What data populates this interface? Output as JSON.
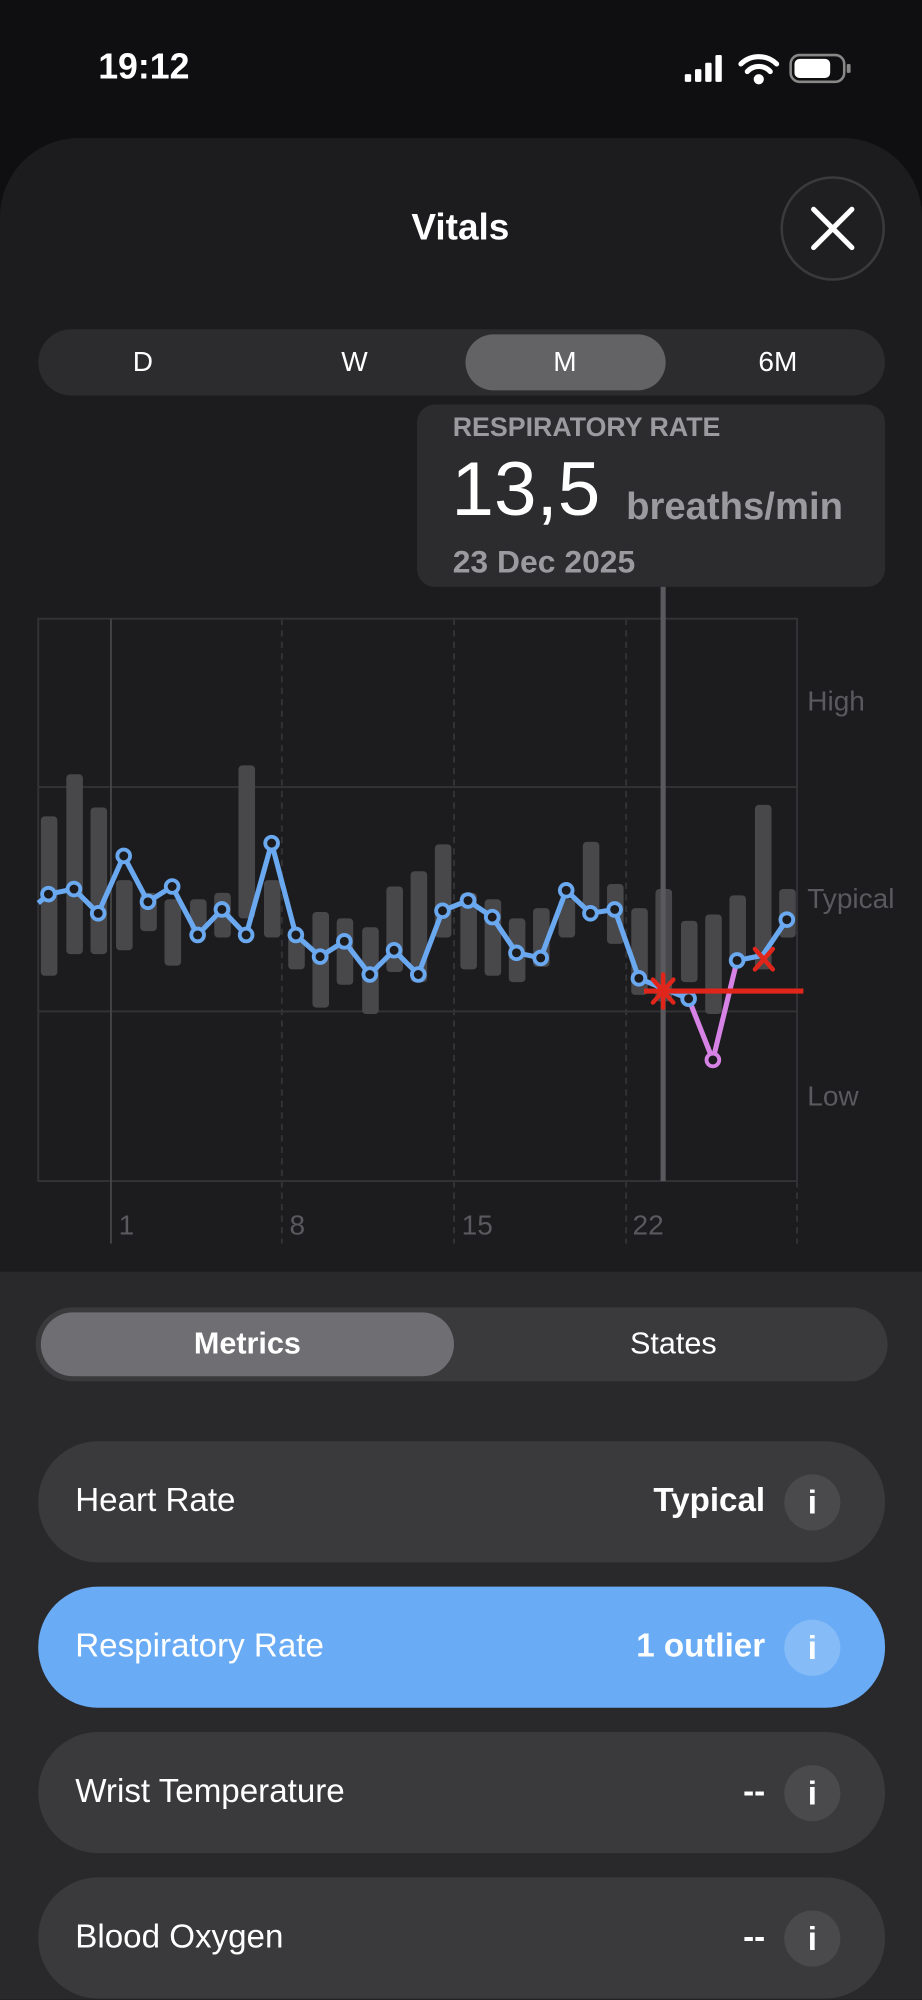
{
  "status": {
    "time": "19:12"
  },
  "title": "Vitals",
  "tabs": [
    "D",
    "W",
    "M",
    "6M"
  ],
  "tooltip": {
    "label": "RESPIRATORY RATE",
    "value": "13,5",
    "unit": "breaths/min",
    "date": "23 Dec 2025"
  },
  "chart": {
    "band_labels": [
      "High",
      "Typical",
      "Low"
    ],
    "x_labels": [
      "1",
      "8",
      "15",
      "22"
    ]
  },
  "segments": [
    "Metrics",
    "States"
  ],
  "metrics": [
    {
      "name": "Heart Rate",
      "status": "Typical"
    },
    {
      "name": "Respiratory Rate",
      "status": "1 outlier"
    },
    {
      "name": "Wrist Temperature",
      "status": "--"
    },
    {
      "name": "Blood Oxygen",
      "status": "--"
    }
  ]
}
